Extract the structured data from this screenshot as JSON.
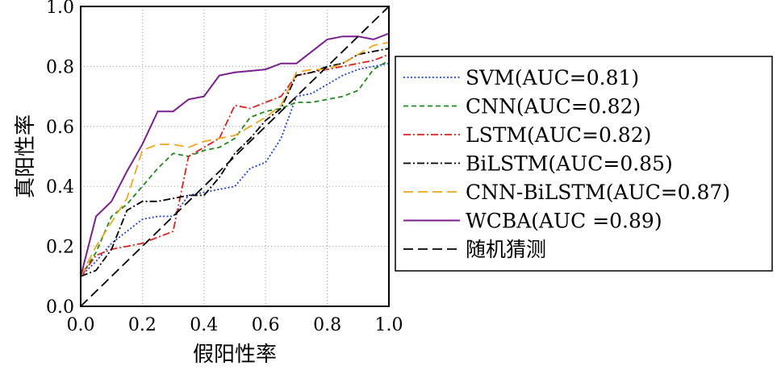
{
  "chart_data": {
    "type": "line",
    "title": "",
    "xlabel": "假阳性率",
    "ylabel": "真阳性率",
    "xlim": [
      0.0,
      1.0
    ],
    "ylim": [
      0.0,
      1.0
    ],
    "x_ticks": [
      "0.0",
      "0.2",
      "0.4",
      "0.6",
      "0.8",
      "1.0"
    ],
    "y_ticks": [
      "0.0",
      "0.2",
      "0.4",
      "0.6",
      "0.8",
      "1.0"
    ],
    "grid": true,
    "legend_position": "right",
    "series": [
      {
        "name": "SVM(AUC=0.81)",
        "color": "#1f3fd6",
        "dash": "dotted",
        "x": [
          0,
          0.05,
          0.1,
          0.15,
          0.2,
          0.25,
          0.3,
          0.35,
          0.4,
          0.45,
          0.5,
          0.55,
          0.6,
          0.65,
          0.7,
          0.75,
          0.8,
          0.85,
          0.9,
          0.95,
          1.0
        ],
        "y": [
          0.1,
          0.15,
          0.21,
          0.25,
          0.29,
          0.3,
          0.3,
          0.37,
          0.38,
          0.39,
          0.4,
          0.46,
          0.48,
          0.56,
          0.7,
          0.71,
          0.74,
          0.77,
          0.79,
          0.8,
          0.81
        ]
      },
      {
        "name": "CNN(AUC=0.82)",
        "color": "#1e8a1e",
        "dash": "dashed",
        "x": [
          0,
          0.05,
          0.1,
          0.15,
          0.2,
          0.25,
          0.3,
          0.35,
          0.4,
          0.45,
          0.5,
          0.55,
          0.6,
          0.65,
          0.7,
          0.75,
          0.8,
          0.85,
          0.9,
          0.95,
          1.0
        ],
        "y": [
          0.1,
          0.18,
          0.3,
          0.34,
          0.4,
          0.46,
          0.51,
          0.5,
          0.52,
          0.53,
          0.56,
          0.63,
          0.65,
          0.66,
          0.68,
          0.68,
          0.69,
          0.7,
          0.72,
          0.79,
          0.82
        ]
      },
      {
        "name": "LSTM(AUC=0.82)",
        "color": "#e0201d",
        "dash": "dash-dot",
        "x": [
          0,
          0.05,
          0.1,
          0.15,
          0.2,
          0.25,
          0.3,
          0.35,
          0.4,
          0.45,
          0.5,
          0.55,
          0.6,
          0.65,
          0.7,
          0.75,
          0.8,
          0.85,
          0.9,
          0.95,
          1.0
        ],
        "y": [
          0.1,
          0.17,
          0.19,
          0.2,
          0.21,
          0.23,
          0.25,
          0.5,
          0.53,
          0.56,
          0.67,
          0.66,
          0.68,
          0.7,
          0.77,
          0.78,
          0.79,
          0.8,
          0.81,
          0.82,
          0.84
        ]
      },
      {
        "name": "BiLSTM(AUC=0.85)",
        "color": "#000000",
        "dash": "dash-dot",
        "x": [
          0,
          0.05,
          0.1,
          0.15,
          0.2,
          0.25,
          0.3,
          0.35,
          0.4,
          0.45,
          0.5,
          0.55,
          0.6,
          0.65,
          0.7,
          0.75,
          0.8,
          0.85,
          0.9,
          0.95,
          1.0
        ],
        "y": [
          0.1,
          0.12,
          0.19,
          0.32,
          0.35,
          0.35,
          0.36,
          0.37,
          0.37,
          0.43,
          0.51,
          0.56,
          0.62,
          0.66,
          0.77,
          0.78,
          0.8,
          0.81,
          0.84,
          0.85,
          0.86
        ]
      },
      {
        "name": "CNN-BiLSTM(AUC=0.87)",
        "color": "#f0a71c",
        "dash": "long-dash",
        "x": [
          0,
          0.05,
          0.1,
          0.15,
          0.2,
          0.25,
          0.3,
          0.35,
          0.4,
          0.45,
          0.5,
          0.55,
          0.6,
          0.65,
          0.7,
          0.75,
          0.8,
          0.85,
          0.9,
          0.95,
          1.0
        ],
        "y": [
          0.1,
          0.2,
          0.28,
          0.36,
          0.52,
          0.54,
          0.54,
          0.53,
          0.55,
          0.56,
          0.57,
          0.6,
          0.63,
          0.67,
          0.78,
          0.79,
          0.79,
          0.81,
          0.84,
          0.87,
          0.88
        ]
      },
      {
        "name": "WCBA(AUC =0.89)",
        "color": "#7a1f8f",
        "dash": "solid",
        "x": [
          0,
          0.05,
          0.1,
          0.15,
          0.2,
          0.25,
          0.3,
          0.35,
          0.4,
          0.45,
          0.5,
          0.55,
          0.6,
          0.65,
          0.7,
          0.75,
          0.8,
          0.85,
          0.9,
          0.95,
          1.0
        ],
        "y": [
          0.1,
          0.3,
          0.35,
          0.45,
          0.54,
          0.65,
          0.65,
          0.69,
          0.7,
          0.77,
          0.78,
          0.785,
          0.79,
          0.81,
          0.81,
          0.85,
          0.89,
          0.9,
          0.9,
          0.89,
          0.91
        ]
      },
      {
        "name": "随机猜测",
        "color": "#000000",
        "dash": "long-dash",
        "x": [
          0,
          1.0
        ],
        "y": [
          0,
          1.0
        ]
      }
    ]
  }
}
